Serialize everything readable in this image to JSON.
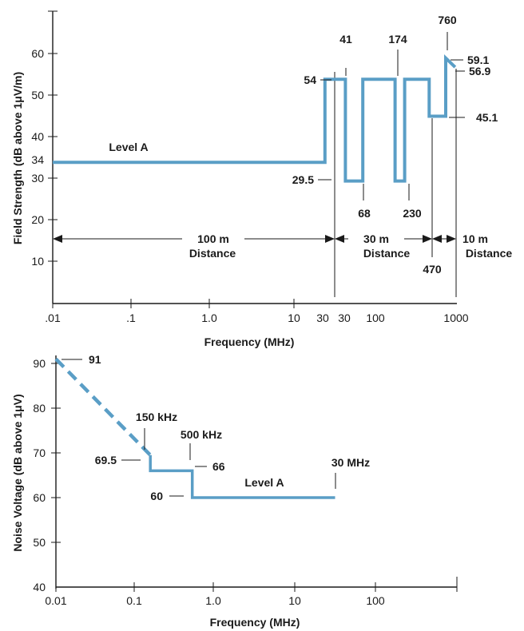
{
  "chart_data": [
    {
      "type": "line",
      "xscale": "log",
      "xlabel": "Frequency (MHz)",
      "ylabel": "Field Strength (dB above 1μV/m)",
      "ylim": [
        0,
        60
      ],
      "y_ticks": [
        "10",
        "20",
        "30",
        "34",
        "40",
        "50",
        "60"
      ],
      "x_ticks": [
        ".01",
        ".1",
        "1.0",
        "10",
        "30",
        "30",
        "100",
        "1000"
      ],
      "series_color": "#5a9ec6",
      "series": [
        {
          "name": "Level A",
          "x": [
            0.01,
            30,
            30,
            41,
            41,
            68,
            68,
            174,
            174,
            230,
            230,
            470,
            470,
            760,
            760,
            1000
          ],
          "y": [
            34,
            34,
            54,
            54,
            29.5,
            29.5,
            54,
            54,
            29.5,
            29.5,
            54,
            54,
            45.1,
            45.1,
            59.1,
            56.9
          ]
        }
      ],
      "annotations": {
        "level": "Level A",
        "values": [
          "41",
          "174",
          "760",
          "59.1",
          "56.9",
          "54",
          "45.1",
          "29.5",
          "68",
          "230",
          "470"
        ],
        "distances": [
          {
            "range": "100 m",
            "label": "Distance"
          },
          {
            "range": "30 m",
            "label": "Distance"
          },
          {
            "range": "10 m",
            "label": "Distance"
          }
        ]
      }
    },
    {
      "type": "line",
      "xscale": "log",
      "xlabel": "Frequency (MHz)",
      "ylabel": "Noise Voltage (dB above 1μV)",
      "ylim": [
        40,
        90
      ],
      "y_ticks": [
        "40",
        "50",
        "60",
        "70",
        "80",
        "90"
      ],
      "x_ticks": [
        "0.01",
        "0.1",
        "1.0",
        "10",
        "100"
      ],
      "series_color": "#5a9ec6",
      "series": [
        {
          "name": "Level A",
          "x": [
            0.01,
            0.15,
            0.15,
            0.5,
            0.5,
            30
          ],
          "y": [
            91,
            69.5,
            66,
            66,
            60,
            60
          ],
          "dashed_segment": [
            0,
            1
          ]
        }
      ],
      "annotations": {
        "level": "Level A",
        "values": [
          "91",
          "150 kHz",
          "500 kHz",
          "69.5",
          "66",
          "60",
          "30 MHz"
        ]
      }
    }
  ]
}
